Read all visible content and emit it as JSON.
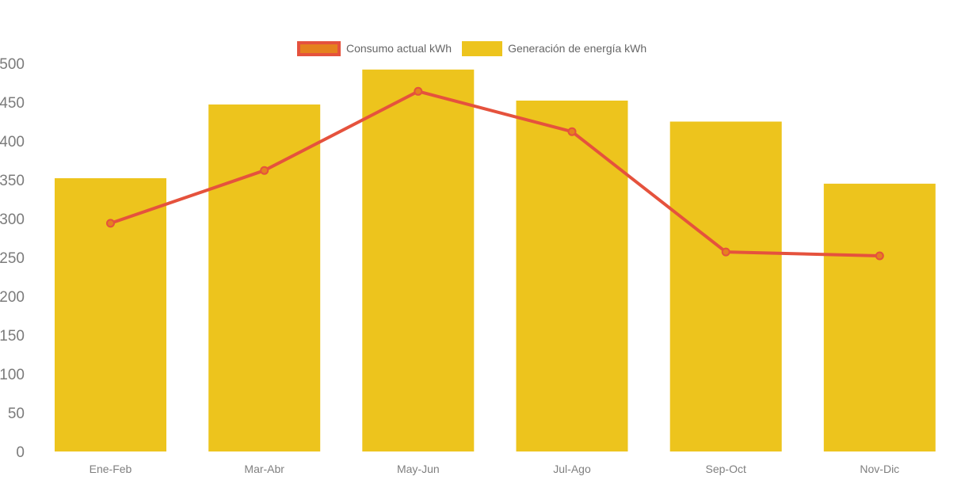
{
  "legend": {
    "consumo_label": "Consumo actual kWh",
    "generacion_label": "Generación de energía kWh"
  },
  "colors": {
    "bar_yellow": "#EDC41D",
    "line_red": "#E5523D",
    "marker_orange": "#E5811E",
    "axis_tick_text": "#7B7B7B",
    "x_tick_text": "#7F7F7F",
    "legend_text": "#666666",
    "background": "#FFFFFF"
  },
  "chart_data": {
    "type": "bar",
    "title": "",
    "xlabel": "",
    "ylabel": "",
    "categories": [
      "Ene-Feb",
      "Mar-Abr",
      "May-Jun",
      "Jul-Ago",
      "Sep-Oct",
      "Nov-Dic"
    ],
    "series": [
      {
        "name": "Consumo actual kWh",
        "type": "line",
        "values": [
          294,
          362,
          464,
          412,
          257,
          252
        ],
        "color": "#E5523D",
        "marker_color": "#E5811E"
      },
      {
        "name": "Generación de energía kWh",
        "type": "bar",
        "values": [
          352,
          447,
          492,
          452,
          425,
          345
        ],
        "color": "#EDC41D"
      }
    ],
    "ylim": [
      0,
      500
    ],
    "yticks": [
      0,
      50,
      100,
      150,
      200,
      250,
      300,
      350,
      400,
      450,
      500
    ],
    "grid": false,
    "legend_position": "top"
  }
}
